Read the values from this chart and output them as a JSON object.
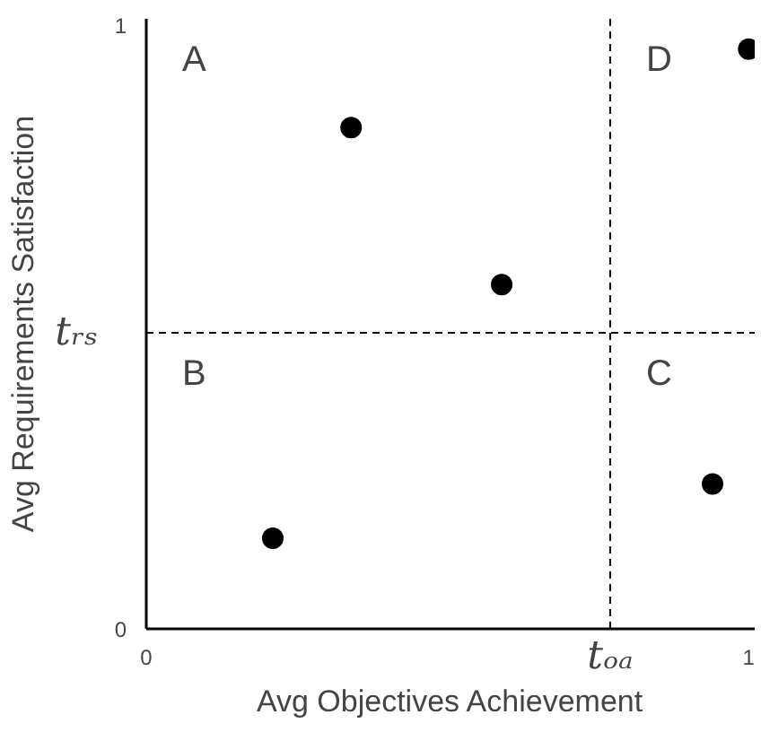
{
  "chart_data": {
    "type": "scatter",
    "xlabel": "Avg Objectives Achievement",
    "ylabel": "Avg Requirements Satisfaction",
    "x": [
      0.34,
      0.59,
      0.21,
      0.94,
      1.0
    ],
    "series": [
      {
        "color": "#000000",
        "values": [
          0.83,
          0.57,
          0.15,
          0.24,
          0.96
        ]
      }
    ],
    "marker": "circle",
    "grid": false,
    "xlim": [
      0,
      1.01
    ],
    "ylim": [
      0,
      1.01
    ],
    "xticks": [
      0,
      1
    ],
    "yticks": [
      0,
      1
    ],
    "ref_lines": [
      {
        "axis": "y",
        "value": 0.49,
        "label": "tᵣₛ",
        "line_style": "dashed",
        "color": "#000000"
      },
      {
        "axis": "x",
        "value": 0.77,
        "label": "tₒₐ",
        "line_style": "dashed",
        "color": "#000000"
      }
    ],
    "annotations": [
      "A",
      "B",
      "C",
      "D"
    ]
  }
}
